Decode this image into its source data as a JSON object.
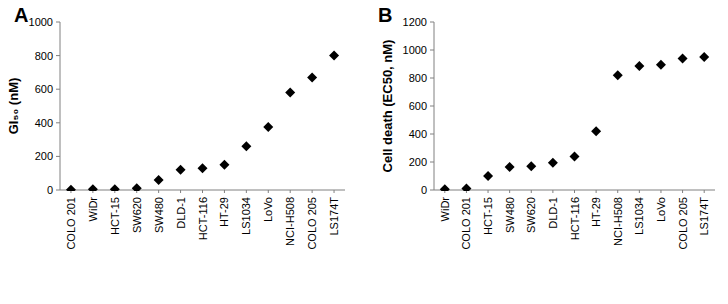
{
  "chart_data": [
    {
      "type": "scatter",
      "title": "A",
      "y_label": "GI₅₀ (nM)",
      "categories": [
        "COLO 201",
        "WiDr",
        "HCT-15",
        "SW620",
        "SW480",
        "DLD-1",
        "HCT-116",
        "HT-29",
        "LS1034",
        "LoVo",
        "NCI-H508",
        "COLO 205",
        "LS174T"
      ],
      "values": [
        2,
        5,
        5,
        10,
        60,
        120,
        130,
        150,
        260,
        375,
        580,
        670,
        800
      ],
      "color": "#000000",
      "marker": "diamond",
      "grid": false,
      "ylim": [
        0,
        1000
      ],
      "yticks": [
        0,
        200,
        400,
        600,
        800,
        1000
      ]
    },
    {
      "type": "scatter",
      "title": "B",
      "y_label": "Cell death (EC50, nM)",
      "categories": [
        "WiDr",
        "COLO 201",
        "HCT-15",
        "SW480",
        "SW620",
        "DLD-1",
        "HCT-116",
        "HT-29",
        "NCI-H508",
        "LS1034",
        "LoVo",
        "COLO 205",
        "LS174T"
      ],
      "values": [
        5,
        10,
        100,
        165,
        170,
        195,
        240,
        420,
        820,
        885,
        895,
        940,
        950
      ],
      "color": "#000000",
      "marker": "diamond",
      "grid": false,
      "ylim": [
        0,
        1200
      ],
      "yticks": [
        0,
        200,
        400,
        600,
        800,
        1000,
        1200
      ]
    }
  ]
}
